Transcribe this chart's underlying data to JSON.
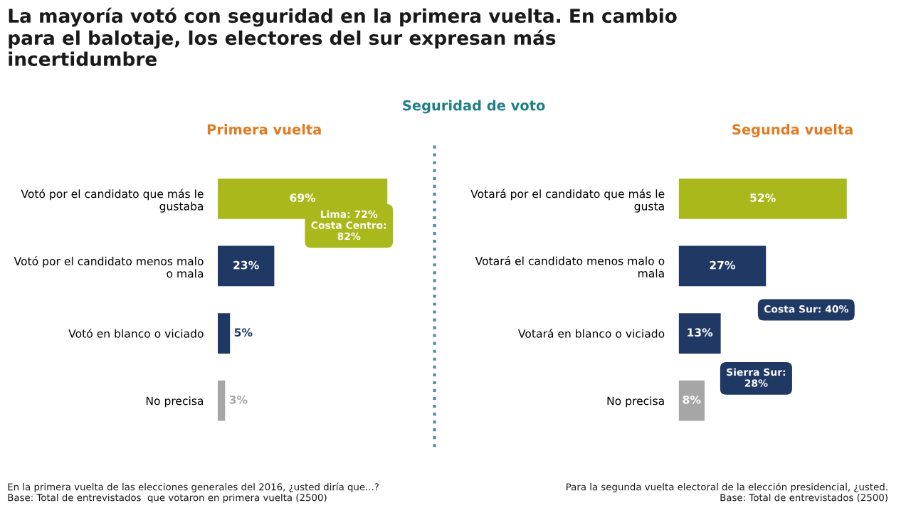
{
  "chart_data": [
    {
      "type": "bar",
      "orientation": "horizontal",
      "title": "Primera vuelta",
      "categories": [
        "Votó por el candidato que más le\ngustaba",
        "Votó por el candidato menos malo\no mala",
        "Votó en blanco o viciado",
        "No precisa"
      ],
      "values": [
        69,
        23,
        5,
        3
      ],
      "value_labels": [
        "69%",
        "23%",
        "5%",
        "3%"
      ],
      "colors": [
        "#a9b81a",
        "#1f3864",
        "#1f3864",
        "#a6a6a6"
      ],
      "annotations": [
        "La mayoría votó con seguridad en la primera vuelta. En cambio\npara el balotaje, los electores del sur expresan más\nincertidumbre",
        "Seguridad de voto",
        "En la primera vuelta de las elecciones generales del 2016, ¿usted diría que...?\nBase: Total de entrevistados  que votaron en primera vuelta (2500)",
        "Lima: 72%\nCosta Centro:\n82%"
      ],
      "grid": false,
      "legend": false
    },
    {
      "type": "bar",
      "orientation": "horizontal",
      "title": "Segunda vuelta",
      "categories": [
        "Votará por el candidato que más le\ngusta",
        "Votará el candidato menos malo o\nmala",
        "Votará en blanco o viciado",
        "No precisa"
      ],
      "values": [
        52,
        27,
        13,
        8
      ],
      "value_labels": [
        "52%",
        "27%",
        "13%",
        "8%"
      ],
      "colors": [
        "#a9b81a",
        "#1f3864",
        "#1f3864",
        "#a6a6a6"
      ],
      "annotations": [
        "Para la segunda vuelta electoral de la elección presidencial, ¿usted.\nBase: Total de entrevistados (2500)",
        "Costa Sur: 40%",
        "Sierra Sur:\n28%"
      ],
      "grid": false,
      "legend": false
    }
  ]
}
